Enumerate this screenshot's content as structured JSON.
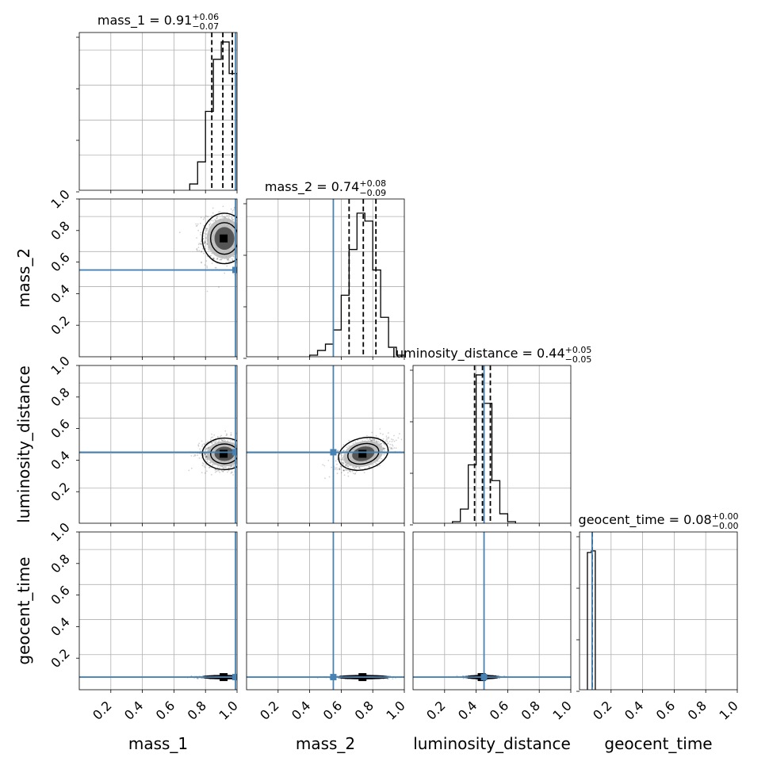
{
  "chart_data": {
    "type": "corner",
    "parameters": [
      "mass_1",
      "mass_2",
      "luminosity_distance",
      "geocent_time"
    ],
    "axis_labels": [
      "mass_1",
      "mass_2",
      "luminosity_distance",
      "geocent_time"
    ],
    "titles": [
      {
        "name": "mass_1",
        "text": "mass_1 = 0.91",
        "sup": "+0.06",
        "sub": "−0.07"
      },
      {
        "name": "mass_2",
        "text": "mass_2 = 0.74",
        "sup": "+0.08",
        "sub": "−0.09"
      },
      {
        "name": "luminosity_distance",
        "text": "luminosity_distance = 0.44",
        "sup": "+0.05",
        "sub": "−0.05"
      },
      {
        "name": "geocent_time",
        "text": "geocent_time = 0.08",
        "sup": "+0.00",
        "sub": "−0.00"
      }
    ],
    "medians": [
      0.91,
      0.74,
      0.44,
      0.08
    ],
    "lower_quantiles": [
      0.84,
      0.65,
      0.39,
      0.08
    ],
    "upper_quantiles": [
      0.97,
      0.82,
      0.49,
      0.08
    ],
    "truths": [
      0.99,
      0.55,
      0.45,
      0.08
    ],
    "xlim": [
      0,
      1
    ],
    "ylim": [
      0,
      1
    ],
    "tick_labels": [
      "0.2",
      "0.4",
      "0.6",
      "0.8",
      "1.0"
    ],
    "grid": true,
    "histograms": [
      {
        "name": "mass_1",
        "bin_edges": [
          0.7,
          0.75,
          0.8,
          0.85,
          0.9,
          0.95,
          1.0
        ],
        "counts": [
          0.04,
          0.18,
          0.5,
          0.83,
          0.94,
          0.74
        ]
      },
      {
        "name": "mass_2",
        "bin_edges": [
          0.4,
          0.45,
          0.5,
          0.55,
          0.6,
          0.65,
          0.7,
          0.75,
          0.8,
          0.85,
          0.9,
          0.95,
          1.0
        ],
        "counts": [
          0.01,
          0.04,
          0.08,
          0.17,
          0.39,
          0.68,
          0.91,
          0.86,
          0.55,
          0.25,
          0.06,
          0.01
        ]
      },
      {
        "name": "luminosity_distance",
        "bin_edges": [
          0.25,
          0.3,
          0.35,
          0.4,
          0.45,
          0.5,
          0.55,
          0.6,
          0.65
        ],
        "counts": [
          0.01,
          0.09,
          0.37,
          0.94,
          0.76,
          0.27,
          0.06,
          0.01
        ]
      },
      {
        "name": "geocent_time",
        "bin_edges": [
          0.05,
          0.075,
          0.1
        ],
        "counts": [
          0.87,
          0.88
        ]
      }
    ],
    "joint_2d": [
      {
        "x": "mass_1",
        "y": "mass_2",
        "center": [
          0.92,
          0.75
        ],
        "spread": [
          0.07,
          0.08
        ],
        "rho": 0.0
      },
      {
        "x": "mass_1",
        "y": "luminosity_distance",
        "center": [
          0.92,
          0.44
        ],
        "spread": [
          0.07,
          0.05
        ],
        "rho": 0.0
      },
      {
        "x": "mass_2",
        "y": "luminosity_distance",
        "center": [
          0.74,
          0.44
        ],
        "spread": [
          0.08,
          0.05
        ],
        "rho": 0.55
      },
      {
        "x": "mass_1",
        "y": "geocent_time",
        "center": [
          0.92,
          0.08
        ],
        "spread": [
          0.07,
          0.004
        ],
        "rho": 0.0
      },
      {
        "x": "mass_2",
        "y": "geocent_time",
        "center": [
          0.74,
          0.08
        ],
        "spread": [
          0.08,
          0.004
        ],
        "rho": 0.0
      },
      {
        "x": "luminosity_distance",
        "y": "geocent_time",
        "center": [
          0.44,
          0.08
        ],
        "spread": [
          0.05,
          0.004
        ],
        "rho": 0.0
      }
    ]
  }
}
